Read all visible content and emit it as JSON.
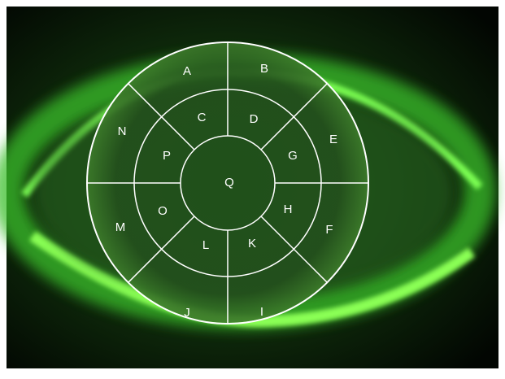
{
  "labels": [
    "A",
    "B",
    "C",
    "D",
    "E",
    "F",
    "G",
    "H",
    "I",
    "J",
    "K",
    "L",
    "M",
    "N",
    "O",
    "P",
    "Q"
  ]
}
